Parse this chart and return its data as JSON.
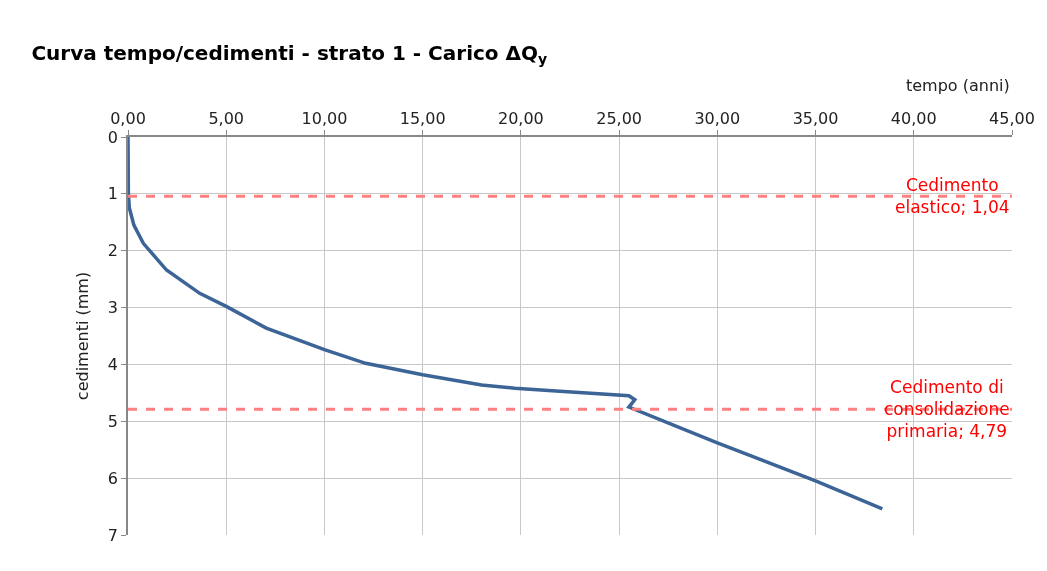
{
  "chart_data": {
    "type": "line",
    "title": "Curva tempo/cedimenti - strato 1 - Carico ΔQ$_{y}$",
    "xlabel": "tempo (anni)",
    "ylabel": "cedimenti (mm)",
    "xlim": [
      0,
      45
    ],
    "xticks": [
      {
        "value": 0,
        "label": "0,00"
      },
      {
        "value": 5,
        "label": "5,00"
      },
      {
        "value": 10,
        "label": "10,00"
      },
      {
        "value": 15,
        "label": "15,00"
      },
      {
        "value": 20,
        "label": "20,00"
      },
      {
        "value": 25,
        "label": "25,00"
      },
      {
        "value": 30,
        "label": "30,00"
      },
      {
        "value": 35,
        "label": "35,00"
      },
      {
        "value": 40,
        "label": "40,00"
      },
      {
        "value": 45,
        "label": "45,00"
      }
    ],
    "ylim": [
      7,
      0
    ],
    "yticks": [
      0,
      1,
      2,
      3,
      4,
      5,
      6,
      7
    ],
    "grid": true,
    "marker": "none",
    "line_style": "solid",
    "series": [
      {
        "color": "#3c6496",
        "x": [
          0,
          0.02,
          0.07,
          0.3,
          0.78,
          1.96,
          3.65,
          5.0,
          7.04,
          10.0,
          12.1,
          15.0,
          18.0,
          19.7,
          21.4,
          25.5,
          25.8,
          25.5,
          30.0,
          35.0,
          38.4
        ],
        "values": [
          0,
          1.0,
          1.25,
          1.55,
          1.87,
          2.34,
          2.75,
          2.98,
          3.36,
          3.74,
          3.98,
          4.18,
          4.36,
          4.42,
          4.46,
          4.55,
          4.62,
          4.75,
          5.38,
          6.05,
          6.54
        ]
      }
    ],
    "ref_lines": [
      {
        "axis": "y",
        "value": 1.04,
        "label": "Cedimento\nelastico; 1,04",
        "color": "#ff8080",
        "line_style": "dashed"
      },
      {
        "axis": "y",
        "value": 4.79,
        "label": "Cedimento di\nconsolidazione\nprimaria; 4,79",
        "color": "#ff8080",
        "line_style": "dashed"
      }
    ]
  }
}
